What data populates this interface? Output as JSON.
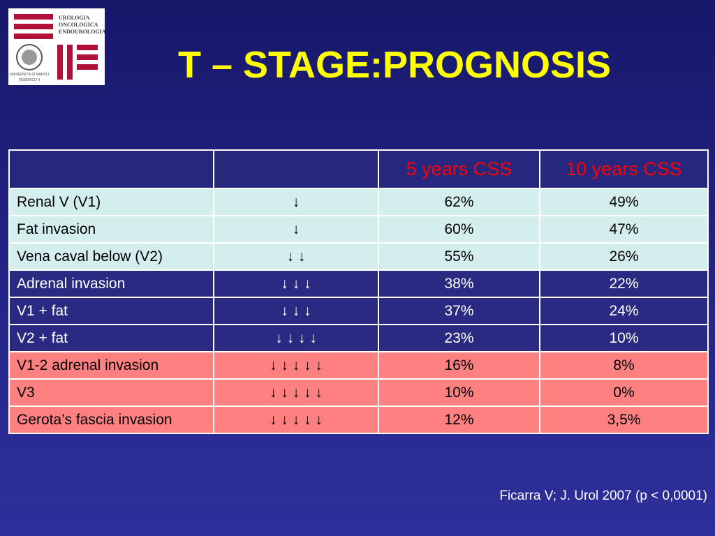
{
  "logo": {
    "lines": [
      "UROLOGIA",
      "ONCOLOGICA",
      "ENDOUROLOGIA"
    ],
    "university": [
      "UNIVERSITÀ DI NAPOLI",
      "FEDERICO II"
    ]
  },
  "title": "T – STAGE:PROGNOSIS",
  "table": {
    "columns": [
      "5 years CSS",
      "10 years CSS"
    ],
    "rows": [
      [
        "Renal V (V1)",
        "↓",
        "62%",
        "49%"
      ],
      [
        "Fat invasion",
        "↓",
        "60%",
        "47%"
      ],
      [
        "Vena caval below (V2)",
        "↓ ↓",
        "55%",
        "26%"
      ],
      [
        "Adrenal invasion",
        "↓ ↓ ↓",
        "38%",
        "22%"
      ],
      [
        "V1 + fat",
        "↓ ↓ ↓",
        "37%",
        "24%"
      ],
      [
        "V2 + fat",
        "↓ ↓ ↓ ↓",
        "23%",
        "10%"
      ],
      [
        "V1-2 adrenal invasion",
        "↓ ↓ ↓ ↓ ↓",
        "16%",
        "8%"
      ],
      [
        "V3",
        "↓ ↓ ↓ ↓ ↓",
        "10%",
        "0%"
      ],
      [
        "Gerota’s fascia invasion",
        "↓ ↓ ↓ ↓ ↓",
        "12%",
        "3,5%"
      ]
    ]
  },
  "footnote": "Ficarra V; J. Urol 2007 (p < 0,0001)"
}
